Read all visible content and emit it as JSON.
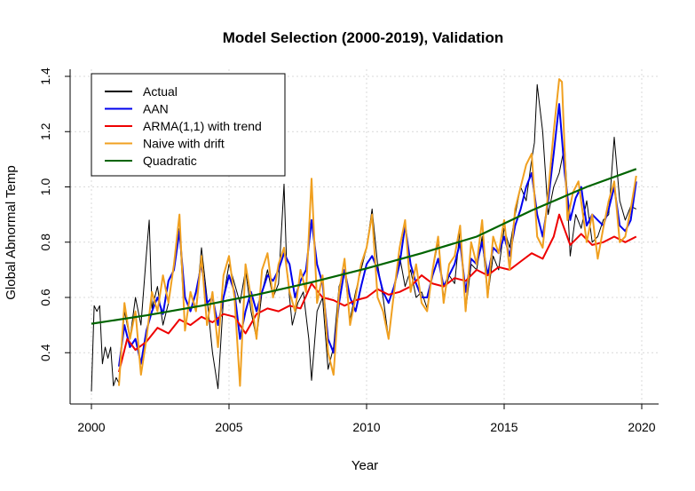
{
  "chart_data": {
    "type": "line",
    "title": "Model Selection (2000-2019), Validation",
    "xlabel": "Year",
    "ylabel": "Global Abnormal Temp",
    "xlim": [
      2000,
      2020
    ],
    "ylim": [
      0.2,
      1.4
    ],
    "x_ticks": [
      2000,
      2005,
      2010,
      2015,
      2020
    ],
    "y_ticks": [
      "0.4",
      "0.6",
      "0.8",
      "1.0",
      "1.2",
      "1.4"
    ],
    "grid": true,
    "legend_position": "top-left",
    "series": [
      {
        "name": "Actual",
        "color": "#000000",
        "x": [
          2000.0,
          2000.1,
          2000.2,
          2000.3,
          2000.4,
          2000.5,
          2000.6,
          2000.7,
          2000.8,
          2000.9,
          2001.0,
          2001.2,
          2001.4,
          2001.6,
          2001.8,
          2002.0,
          2002.1,
          2002.2,
          2002.4,
          2002.6,
          2002.8,
          2003.0,
          2003.2,
          2003.4,
          2003.6,
          2003.8,
          2004.0,
          2004.2,
          2004.4,
          2004.6,
          2004.8,
          2005.0,
          2005.2,
          2005.4,
          2005.6,
          2005.8,
          2006.0,
          2006.2,
          2006.4,
          2006.6,
          2006.8,
          2007.0,
          2007.1,
          2007.3,
          2007.5,
          2007.7,
          2007.9,
          2008.0,
          2008.2,
          2008.4,
          2008.6,
          2008.8,
          2009.0,
          2009.2,
          2009.4,
          2009.6,
          2009.8,
          2010.0,
          2010.2,
          2010.4,
          2010.6,
          2010.8,
          2011.0,
          2011.2,
          2011.4,
          2011.6,
          2011.8,
          2012.0,
          2012.2,
          2012.4,
          2012.6,
          2012.8,
          2013.0,
          2013.2,
          2013.4,
          2013.6,
          2013.8,
          2014.0,
          2014.2,
          2014.4,
          2014.6,
          2014.8,
          2015.0,
          2015.2,
          2015.4,
          2015.6,
          2015.8,
          2016.0,
          2016.1,
          2016.2,
          2016.4,
          2016.6,
          2016.8,
          2017.0,
          2017.2,
          2017.4,
          2017.6,
          2017.8,
          2018.0,
          2018.2,
          2018.4,
          2018.6,
          2018.8,
          2019.0,
          2019.2,
          2019.4,
          2019.6,
          2019.8
        ],
        "y": [
          0.26,
          0.57,
          0.55,
          0.57,
          0.36,
          0.42,
          0.38,
          0.42,
          0.28,
          0.31,
          0.29,
          0.55,
          0.45,
          0.6,
          0.5,
          0.76,
          0.88,
          0.56,
          0.64,
          0.5,
          0.58,
          0.72,
          0.85,
          0.48,
          0.62,
          0.56,
          0.78,
          0.6,
          0.4,
          0.27,
          0.6,
          0.72,
          0.65,
          0.58,
          0.7,
          0.55,
          0.45,
          0.62,
          0.7,
          0.6,
          0.65,
          1.01,
          0.7,
          0.5,
          0.58,
          0.62,
          0.45,
          0.3,
          0.55,
          0.6,
          0.34,
          0.42,
          0.64,
          0.7,
          0.52,
          0.62,
          0.7,
          0.78,
          0.92,
          0.72,
          0.6,
          0.45,
          0.62,
          0.75,
          0.64,
          0.7,
          0.6,
          0.62,
          0.56,
          0.7,
          0.8,
          0.6,
          0.68,
          0.65,
          0.85,
          0.55,
          0.72,
          0.7,
          0.82,
          0.6,
          0.75,
          0.7,
          0.85,
          0.78,
          0.9,
          1.0,
          0.95,
          1.1,
          1.16,
          1.37,
          1.2,
          0.9,
          1.0,
          1.05,
          1.15,
          0.75,
          0.9,
          0.85,
          0.95,
          0.8,
          0.82,
          0.88,
          0.9,
          1.18,
          0.95,
          0.88,
          0.93,
          0.92
        ]
      },
      {
        "name": "AAN",
        "color": "#0000ee",
        "x": [
          2001.0,
          2001.2,
          2001.4,
          2001.6,
          2001.8,
          2002.0,
          2002.2,
          2002.4,
          2002.6,
          2002.8,
          2003.0,
          2003.2,
          2003.4,
          2003.6,
          2003.8,
          2004.0,
          2004.2,
          2004.4,
          2004.6,
          2004.8,
          2005.0,
          2005.2,
          2005.4,
          2005.6,
          2005.8,
          2006.0,
          2006.2,
          2006.4,
          2006.6,
          2006.8,
          2007.0,
          2007.2,
          2007.4,
          2007.6,
          2007.8,
          2008.0,
          2008.2,
          2008.4,
          2008.6,
          2008.8,
          2009.0,
          2009.2,
          2009.4,
          2009.6,
          2009.8,
          2010.0,
          2010.2,
          2010.4,
          2010.6,
          2010.8,
          2011.0,
          2011.2,
          2011.4,
          2011.6,
          2011.8,
          2012.0,
          2012.2,
          2012.4,
          2012.6,
          2012.8,
          2013.0,
          2013.2,
          2013.4,
          2013.6,
          2013.8,
          2014.0,
          2014.2,
          2014.4,
          2014.6,
          2014.8,
          2015.0,
          2015.2,
          2015.4,
          2015.6,
          2015.8,
          2016.0,
          2016.2,
          2016.4,
          2016.6,
          2016.8,
          2017.0,
          2017.2,
          2017.4,
          2017.6,
          2017.8,
          2018.0,
          2018.2,
          2018.4,
          2018.6,
          2018.8,
          2019.0,
          2019.2,
          2019.4,
          2019.6,
          2019.8
        ],
        "y": [
          0.35,
          0.5,
          0.42,
          0.45,
          0.36,
          0.48,
          0.55,
          0.6,
          0.54,
          0.66,
          0.7,
          0.84,
          0.6,
          0.55,
          0.62,
          0.72,
          0.58,
          0.6,
          0.5,
          0.6,
          0.68,
          0.62,
          0.45,
          0.55,
          0.62,
          0.55,
          0.62,
          0.68,
          0.66,
          0.7,
          0.76,
          0.72,
          0.6,
          0.66,
          0.7,
          0.88,
          0.72,
          0.65,
          0.45,
          0.4,
          0.58,
          0.7,
          0.6,
          0.55,
          0.64,
          0.72,
          0.75,
          0.7,
          0.62,
          0.58,
          0.64,
          0.72,
          0.86,
          0.72,
          0.65,
          0.6,
          0.6,
          0.68,
          0.74,
          0.64,
          0.68,
          0.72,
          0.8,
          0.62,
          0.74,
          0.72,
          0.8,
          0.68,
          0.78,
          0.76,
          0.82,
          0.75,
          0.86,
          0.92,
          1.0,
          1.05,
          0.9,
          0.82,
          0.95,
          1.12,
          1.3,
          1.05,
          0.88,
          0.96,
          1.0,
          0.86,
          0.9,
          0.88,
          0.86,
          0.92,
          1.0,
          0.86,
          0.84,
          0.88,
          1.02
        ]
      },
      {
        "name": "ARMA(1,1) with trend",
        "color": "#ee0000",
        "x": [
          2001.0,
          2001.3,
          2001.6,
          2002.0,
          2002.4,
          2002.8,
          2003.2,
          2003.6,
          2004.0,
          2004.4,
          2004.8,
          2005.2,
          2005.6,
          2006.0,
          2006.4,
          2006.8,
          2007.2,
          2007.6,
          2008.0,
          2008.4,
          2008.8,
          2009.2,
          2009.6,
          2010.0,
          2010.4,
          2010.8,
          2011.2,
          2011.6,
          2012.0,
          2012.4,
          2012.8,
          2013.2,
          2013.6,
          2014.0,
          2014.4,
          2014.8,
          2015.2,
          2015.6,
          2016.0,
          2016.4,
          2016.8,
          2017.0,
          2017.4,
          2017.8,
          2018.2,
          2018.6,
          2019.0,
          2019.4,
          2019.8
        ],
        "y": [
          0.33,
          0.45,
          0.41,
          0.44,
          0.49,
          0.47,
          0.52,
          0.5,
          0.53,
          0.51,
          0.54,
          0.53,
          0.47,
          0.54,
          0.56,
          0.55,
          0.57,
          0.56,
          0.65,
          0.6,
          0.59,
          0.57,
          0.59,
          0.6,
          0.63,
          0.61,
          0.62,
          0.64,
          0.68,
          0.65,
          0.64,
          0.67,
          0.66,
          0.7,
          0.68,
          0.71,
          0.7,
          0.73,
          0.76,
          0.74,
          0.82,
          0.9,
          0.79,
          0.83,
          0.79,
          0.8,
          0.82,
          0.8,
          0.82
        ]
      },
      {
        "name": "Naive with drift",
        "color": "#f0a020",
        "x": [
          2001.0,
          2001.2,
          2001.4,
          2001.6,
          2001.8,
          2002.0,
          2002.2,
          2002.4,
          2002.6,
          2002.8,
          2003.0,
          2003.2,
          2003.4,
          2003.6,
          2003.8,
          2004.0,
          2004.2,
          2004.4,
          2004.6,
          2004.8,
          2005.0,
          2005.2,
          2005.4,
          2005.6,
          2005.8,
          2006.0,
          2006.2,
          2006.4,
          2006.6,
          2006.8,
          2007.0,
          2007.2,
          2007.4,
          2007.6,
          2007.8,
          2008.0,
          2008.2,
          2008.4,
          2008.6,
          2008.8,
          2009.0,
          2009.2,
          2009.4,
          2009.6,
          2009.8,
          2010.0,
          2010.2,
          2010.4,
          2010.6,
          2010.8,
          2011.0,
          2011.2,
          2011.4,
          2011.6,
          2011.8,
          2012.0,
          2012.2,
          2012.4,
          2012.6,
          2012.8,
          2013.0,
          2013.2,
          2013.4,
          2013.6,
          2013.8,
          2014.0,
          2014.2,
          2014.4,
          2014.6,
          2014.8,
          2015.0,
          2015.2,
          2015.4,
          2015.6,
          2015.8,
          2016.0,
          2016.2,
          2016.4,
          2016.6,
          2016.8,
          2017.0,
          2017.1,
          2017.3,
          2017.5,
          2017.7,
          2018.0,
          2018.2,
          2018.4,
          2018.6,
          2018.8,
          2019.0,
          2019.2,
          2019.4,
          2019.6,
          2019.8
        ],
        "y": [
          0.28,
          0.58,
          0.45,
          0.55,
          0.32,
          0.45,
          0.62,
          0.55,
          0.68,
          0.58,
          0.72,
          0.9,
          0.48,
          0.62,
          0.55,
          0.75,
          0.5,
          0.62,
          0.42,
          0.68,
          0.75,
          0.6,
          0.28,
          0.72,
          0.6,
          0.45,
          0.7,
          0.76,
          0.6,
          0.72,
          0.78,
          0.62,
          0.55,
          0.7,
          0.62,
          1.03,
          0.58,
          0.68,
          0.4,
          0.32,
          0.62,
          0.74,
          0.5,
          0.6,
          0.72,
          0.78,
          0.9,
          0.6,
          0.55,
          0.45,
          0.62,
          0.78,
          0.88,
          0.62,
          0.72,
          0.58,
          0.55,
          0.7,
          0.82,
          0.58,
          0.72,
          0.75,
          0.86,
          0.55,
          0.8,
          0.72,
          0.88,
          0.6,
          0.82,
          0.76,
          0.88,
          0.7,
          0.92,
          1.0,
          1.08,
          1.12,
          0.82,
          0.78,
          0.98,
          1.2,
          1.39,
          1.38,
          0.88,
          0.98,
          1.02,
          0.8,
          0.9,
          0.74,
          0.85,
          0.95,
          1.02,
          0.8,
          0.82,
          0.92,
          1.04
        ]
      },
      {
        "name": "Quadratic",
        "color": "#006400",
        "x": [
          2000,
          2002,
          2004,
          2006,
          2008,
          2010,
          2012,
          2014,
          2016,
          2018,
          2019.8
        ],
        "y": [
          0.505,
          0.535,
          0.57,
          0.61,
          0.655,
          0.705,
          0.76,
          0.82,
          0.915,
          1.0,
          1.065
        ]
      }
    ]
  }
}
